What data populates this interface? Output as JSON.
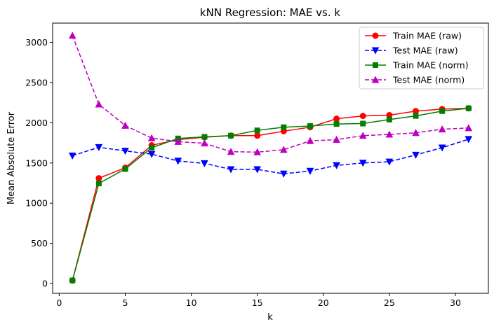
{
  "chart_data": {
    "type": "line",
    "title": "kNN Regression: MAE vs. k",
    "xlabel": "k",
    "ylabel": "Mean Absolute Error",
    "xlim": [
      -0.5,
      32.5
    ],
    "ylim": [
      -121.6,
      3240
    ],
    "xticks": [
      0,
      5,
      10,
      15,
      20,
      25,
      30
    ],
    "yticks": [
      0,
      500,
      1000,
      1500,
      2000,
      2500,
      3000
    ],
    "grid": false,
    "legend_position": "top-right",
    "x": [
      1,
      3,
      5,
      7,
      9,
      11,
      13,
      15,
      17,
      19,
      21,
      23,
      25,
      27,
      29,
      31
    ],
    "series": [
      {
        "name": "Train MAE (raw)",
        "color": "#ff0000",
        "line": "solid",
        "marker": "circle",
        "values": [
          38,
          1310,
          1440,
          1720,
          1790,
          1820,
          1840,
          1840,
          1895,
          1945,
          2050,
          2085,
          2095,
          2145,
          2170,
          2180
        ]
      },
      {
        "name": "Test MAE (raw)",
        "color": "#0000ff",
        "line": "dashed",
        "marker": "triangle-down",
        "values": [
          1590,
          1695,
          1650,
          1610,
          1525,
          1495,
          1420,
          1420,
          1365,
          1400,
          1470,
          1500,
          1515,
          1600,
          1690,
          1795
        ]
      },
      {
        "name": "Train MAE (norm)",
        "color": "#008000",
        "line": "solid",
        "marker": "square",
        "values": [
          38,
          1245,
          1425,
          1690,
          1805,
          1825,
          1840,
          1905,
          1945,
          1960,
          1985,
          1990,
          2040,
          2085,
          2145,
          2180
        ]
      },
      {
        "name": "Test MAE (norm)",
        "color": "#bf00bf",
        "line": "dashed",
        "marker": "triangle-up",
        "values": [
          3085,
          2230,
          1965,
          1810,
          1765,
          1745,
          1640,
          1635,
          1665,
          1775,
          1790,
          1840,
          1855,
          1875,
          1920,
          1935
        ]
      }
    ]
  }
}
